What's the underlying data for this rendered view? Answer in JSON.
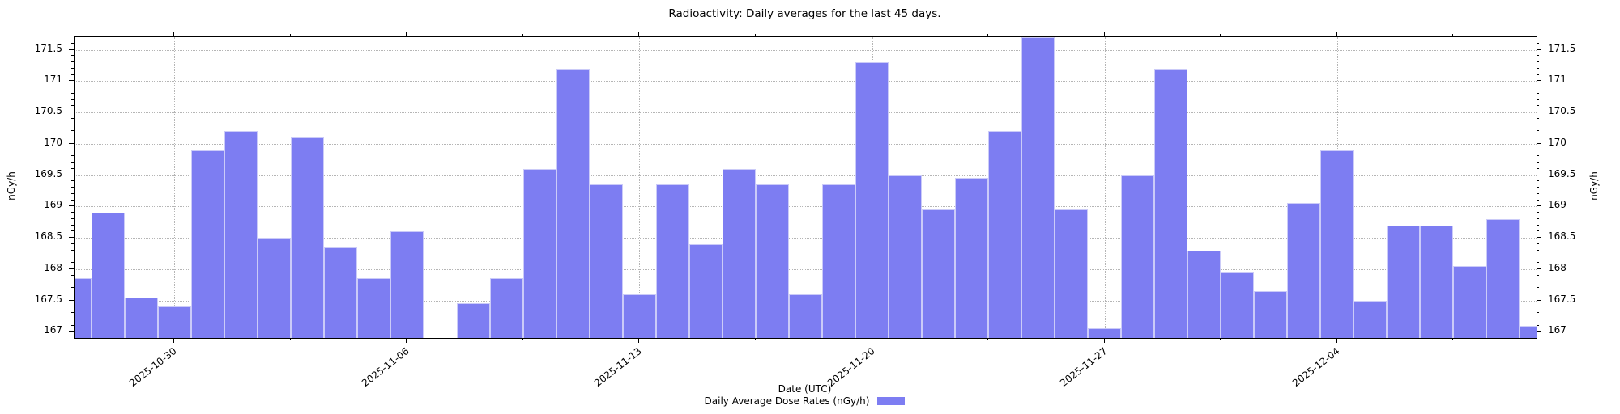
{
  "chart_data": {
    "type": "bar",
    "title": "Radioactivity: Daily averages for the last 45 days.",
    "xlabel": "Date (UTC)",
    "ylabel": "nGy/h",
    "legend_label": "Daily Average Dose Rates (nGy/h)",
    "legend_position": "bottom center, swatch to the right of label",
    "grid": "dotted horizontal lines every 0.5 nGy/h; dotted vertical lines at weekly date ticks",
    "ylim": [
      166.9,
      171.7
    ],
    "yticks": [
      {
        "v": 167,
        "label": "167"
      },
      {
        "v": 167.5,
        "label": "167.5"
      },
      {
        "v": 168,
        "label": "168"
      },
      {
        "v": 168.5,
        "label": "168.5"
      },
      {
        "v": 169,
        "label": "169"
      },
      {
        "v": 169.5,
        "label": "169.5"
      },
      {
        "v": 170,
        "label": "170"
      },
      {
        "v": 170.5,
        "label": "170.5"
      },
      {
        "v": 171,
        "label": "171"
      },
      {
        "v": 171.5,
        "label": "171.5"
      }
    ],
    "ytick_minor_step": 0.1,
    "dates": [
      "2025-10-27",
      "2025-10-28",
      "2025-10-29",
      "2025-10-30",
      "2025-10-31",
      "2025-11-01",
      "2025-11-02",
      "2025-11-03",
      "2025-11-04",
      "2025-11-05",
      "2025-11-06",
      "2025-11-07",
      "2025-11-08",
      "2025-11-09",
      "2025-11-10",
      "2025-11-11",
      "2025-11-12",
      "2025-11-13",
      "2025-11-14",
      "2025-11-15",
      "2025-11-16",
      "2025-11-17",
      "2025-11-18",
      "2025-11-19",
      "2025-11-20",
      "2025-11-21",
      "2025-11-22",
      "2025-11-23",
      "2025-11-24",
      "2025-11-25",
      "2025-11-26",
      "2025-11-27",
      "2025-11-28",
      "2025-11-29",
      "2025-11-30",
      "2025-12-01",
      "2025-12-02",
      "2025-12-03",
      "2025-12-04",
      "2025-12-05",
      "2025-12-06",
      "2025-12-07",
      "2025-12-08",
      "2025-12-09",
      "2025-12-10"
    ],
    "values": [
      167.85,
      168.9,
      167.55,
      167.4,
      169.9,
      170.2,
      168.5,
      170.1,
      168.35,
      167.85,
      168.6,
      null,
      167.45,
      167.85,
      169.6,
      171.2,
      169.35,
      167.6,
      169.35,
      168.4,
      169.6,
      169.35,
      167.6,
      169.35,
      171.3,
      169.5,
      168.95,
      169.45,
      170.2,
      171.7,
      168.95,
      167.05,
      169.5,
      171.2,
      168.3,
      167.95,
      167.65,
      169.05,
      169.9,
      167.5,
      168.7,
      168.7,
      168.05,
      168.8,
      167.1
    ],
    "xticks_major": [
      {
        "index": 3,
        "label": "2025-10-30"
      },
      {
        "index": 10,
        "label": "2025-11-06"
      },
      {
        "index": 17,
        "label": "2025-11-13"
      },
      {
        "index": 24,
        "label": "2025-11-20"
      },
      {
        "index": 31,
        "label": "2025-11-27"
      },
      {
        "index": 38,
        "label": "2025-12-04"
      }
    ],
    "xticks_minor_indices": [
      6.5,
      13.5,
      20.5,
      27.5,
      34.5,
      41.5
    ],
    "colors": {
      "bar_fill": "#7d7df2",
      "bar_edge": "#cbcbf8",
      "grid": "#b5b5b5",
      "spine": "#000000",
      "text": "#000000"
    }
  }
}
